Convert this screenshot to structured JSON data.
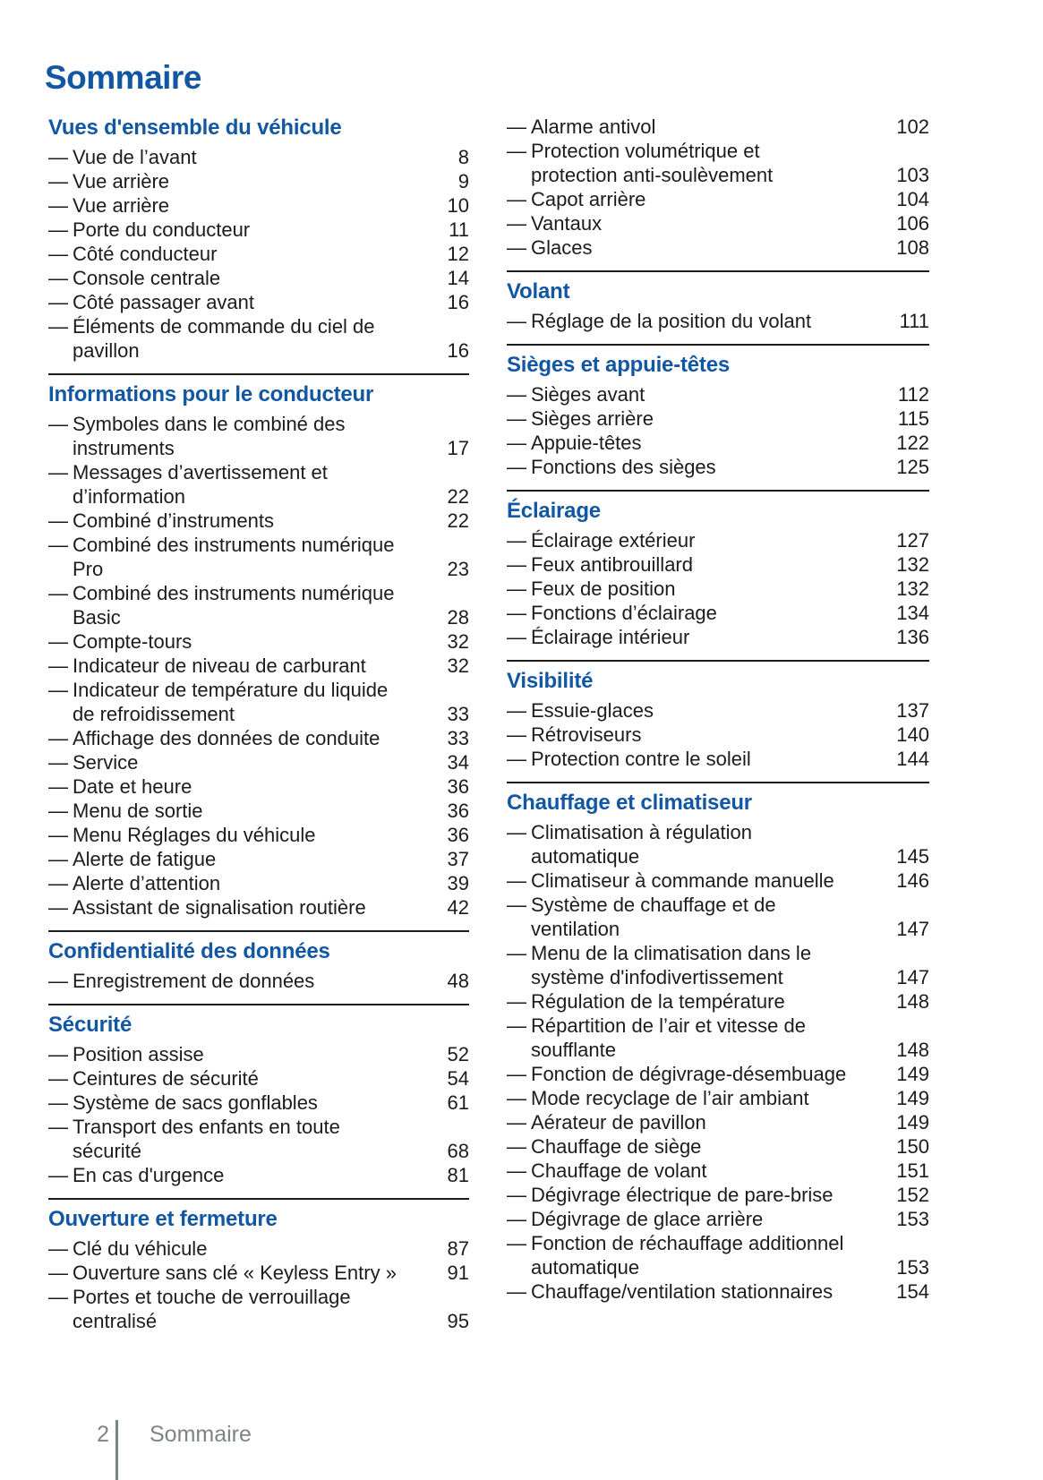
{
  "document": {
    "title": "Sommaire",
    "list_marker": "—",
    "footer": {
      "page_number": "2",
      "section_label": "Sommaire"
    },
    "colors": {
      "accent_blue": "#1257a3",
      "body_text": "#1c1c1c",
      "footer_gray": "#7b8487"
    }
  },
  "columns": [
    {
      "sections": [
        {
          "title": "Vues d'ensemble du véhicule",
          "rule_after": true,
          "items": [
            {
              "lines": [
                "Vue de l’avant"
              ],
              "page": "8"
            },
            {
              "lines": [
                "Vue arrière"
              ],
              "page": "9"
            },
            {
              "lines": [
                "Vue arrière"
              ],
              "page": "10"
            },
            {
              "lines": [
                "Porte du conducteur"
              ],
              "page": "11"
            },
            {
              "lines": [
                "Côté conducteur"
              ],
              "page": "12"
            },
            {
              "lines": [
                "Console centrale"
              ],
              "page": "14"
            },
            {
              "lines": [
                "Côté passager avant"
              ],
              "page": "16"
            },
            {
              "lines": [
                "Éléments de commande du ciel de",
                "pavillon"
              ],
              "page": "16"
            }
          ]
        },
        {
          "title": "Informations pour le conducteur",
          "rule_after": true,
          "items": [
            {
              "lines": [
                "Symboles dans le combiné des",
                "instruments"
              ],
              "page": "17"
            },
            {
              "lines": [
                "Messages d’avertissement et",
                "d’information"
              ],
              "page": "22"
            },
            {
              "lines": [
                "Combiné d’instruments"
              ],
              "page": "22"
            },
            {
              "lines": [
                "Combiné des instruments numérique",
                "Pro"
              ],
              "page": "23"
            },
            {
              "lines": [
                "Combiné des instruments numérique",
                "Basic"
              ],
              "page": "28"
            },
            {
              "lines": [
                "Compte-tours"
              ],
              "page": "32"
            },
            {
              "lines": [
                "Indicateur de niveau de carburant"
              ],
              "page": "32"
            },
            {
              "lines": [
                "Indicateur de température du liquide",
                "de refroidissement"
              ],
              "page": "33"
            },
            {
              "lines": [
                "Affichage des données de conduite"
              ],
              "page": "33"
            },
            {
              "lines": [
                "Service"
              ],
              "page": "34"
            },
            {
              "lines": [
                "Date et heure"
              ],
              "page": "36"
            },
            {
              "lines": [
                "Menu de sortie"
              ],
              "page": "36"
            },
            {
              "lines": [
                "Menu Réglages du véhicule"
              ],
              "page": "36"
            },
            {
              "lines": [
                "Alerte de fatigue"
              ],
              "page": "37"
            },
            {
              "lines": [
                "Alerte d’attention"
              ],
              "page": "39"
            },
            {
              "lines": [
                "Assistant de signalisation routière"
              ],
              "page": "42"
            }
          ]
        },
        {
          "title": "Confidentialité des données",
          "rule_after": true,
          "items": [
            {
              "lines": [
                "Enregistrement de données"
              ],
              "page": "48"
            }
          ]
        },
        {
          "title": "Sécurité",
          "rule_after": true,
          "items": [
            {
              "lines": [
                "Position assise"
              ],
              "page": "52"
            },
            {
              "lines": [
                "Ceintures de sécurité"
              ],
              "page": "54"
            },
            {
              "lines": [
                "Système de sacs gonflables"
              ],
              "page": "61"
            },
            {
              "lines": [
                "Transport des enfants en toute",
                "sécurité"
              ],
              "page": "68"
            },
            {
              "lines": [
                "En cas d'urgence"
              ],
              "page": "81"
            }
          ]
        },
        {
          "title": "Ouverture et fermeture",
          "rule_after": false,
          "items": [
            {
              "lines": [
                "Clé du véhicule"
              ],
              "page": "87"
            },
            {
              "lines": [
                "Ouverture sans clé « Keyless Entry »"
              ],
              "page": "91"
            },
            {
              "lines": [
                "Portes et touche de verrouillage",
                "centralisé"
              ],
              "page": "95"
            }
          ]
        }
      ]
    },
    {
      "sections": [
        {
          "title": null,
          "rule_after": true,
          "items": [
            {
              "lines": [
                "Alarme antivol"
              ],
              "page": "102"
            },
            {
              "lines": [
                "Protection volumétrique et",
                "protection anti-soulèvement"
              ],
              "page": "103"
            },
            {
              "lines": [
                "Capot arrière"
              ],
              "page": "104"
            },
            {
              "lines": [
                "Vantaux"
              ],
              "page": "106"
            },
            {
              "lines": [
                "Glaces"
              ],
              "page": "108"
            }
          ]
        },
        {
          "title": "Volant",
          "rule_after": true,
          "items": [
            {
              "lines": [
                "Réglage de la position du volant"
              ],
              "page": "111"
            }
          ]
        },
        {
          "title": "Sièges et appuie-têtes",
          "rule_after": true,
          "items": [
            {
              "lines": [
                "Sièges avant"
              ],
              "page": "112"
            },
            {
              "lines": [
                "Sièges arrière"
              ],
              "page": "115"
            },
            {
              "lines": [
                "Appuie-têtes"
              ],
              "page": "122"
            },
            {
              "lines": [
                "Fonctions des sièges"
              ],
              "page": "125"
            }
          ]
        },
        {
          "title": "Éclairage",
          "rule_after": true,
          "items": [
            {
              "lines": [
                "Éclairage extérieur"
              ],
              "page": "127"
            },
            {
              "lines": [
                "Feux antibrouillard"
              ],
              "page": "132"
            },
            {
              "lines": [
                "Feux de position"
              ],
              "page": "132"
            },
            {
              "lines": [
                "Fonctions d’éclairage"
              ],
              "page": "134"
            },
            {
              "lines": [
                "Éclairage intérieur"
              ],
              "page": "136"
            }
          ]
        },
        {
          "title": "Visibilité",
          "rule_after": true,
          "items": [
            {
              "lines": [
                "Essuie-glaces"
              ],
              "page": "137"
            },
            {
              "lines": [
                "Rétroviseurs"
              ],
              "page": "140"
            },
            {
              "lines": [
                "Protection contre le soleil"
              ],
              "page": "144"
            }
          ]
        },
        {
          "title": "Chauffage et climatiseur",
          "rule_after": false,
          "items": [
            {
              "lines": [
                "Climatisation à régulation",
                "automatique"
              ],
              "page": "145"
            },
            {
              "lines": [
                "Climatiseur à commande manuelle"
              ],
              "page": "146"
            },
            {
              "lines": [
                "Système de chauffage et de",
                "ventilation"
              ],
              "page": "147"
            },
            {
              "lines": [
                "Menu de la climatisation dans le",
                "système d'infodivertissement"
              ],
              "page": "147"
            },
            {
              "lines": [
                "Régulation de la température"
              ],
              "page": "148"
            },
            {
              "lines": [
                "Répartition de l’air et vitesse de",
                "soufflante"
              ],
              "page": "148"
            },
            {
              "lines": [
                "Fonction de dégivrage-désembuage"
              ],
              "page": "149"
            },
            {
              "lines": [
                "Mode recyclage de l’air ambiant"
              ],
              "page": "149"
            },
            {
              "lines": [
                "Aérateur de pavillon"
              ],
              "page": "149"
            },
            {
              "lines": [
                "Chauffage de siège"
              ],
              "page": "150"
            },
            {
              "lines": [
                "Chauffage de volant"
              ],
              "page": "151"
            },
            {
              "lines": [
                "Dégivrage électrique de pare-brise"
              ],
              "page": "152"
            },
            {
              "lines": [
                "Dégivrage de glace arrière"
              ],
              "page": "153"
            },
            {
              "lines": [
                "Fonction de réchauffage additionnel",
                "automatique"
              ],
              "page": "153"
            },
            {
              "lines": [
                "Chauffage/ventilation stationnaires"
              ],
              "page": "154"
            }
          ]
        }
      ]
    }
  ]
}
